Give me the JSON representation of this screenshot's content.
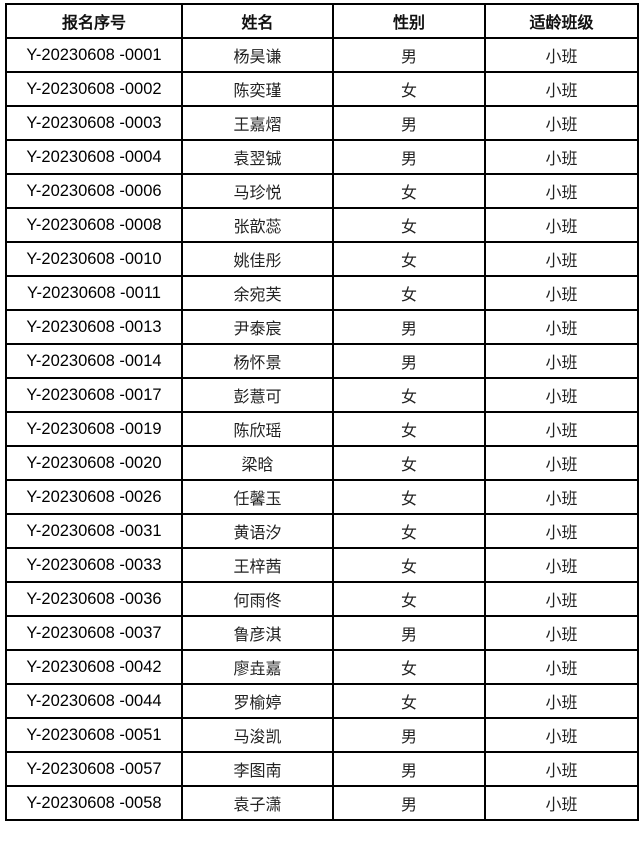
{
  "headers": [
    "报名序号",
    "姓名",
    "性别",
    "适龄班级"
  ],
  "rows": [
    [
      "Y-20230608 -0001",
      "杨昊谦",
      "男",
      "小班"
    ],
    [
      "Y-20230608 -0002",
      "陈奕瑾",
      "女",
      "小班"
    ],
    [
      "Y-20230608 -0003",
      "王嘉熠",
      "男",
      "小班"
    ],
    [
      "Y-20230608 -0004",
      "袁翌铖",
      "男",
      "小班"
    ],
    [
      "Y-20230608 -0006",
      "马珍悦",
      "女",
      "小班"
    ],
    [
      "Y-20230608 -0008",
      "张歆蕊",
      "女",
      "小班"
    ],
    [
      "Y-20230608 -0010",
      "姚佳彤",
      "女",
      "小班"
    ],
    [
      "Y-20230608 -0011",
      "余宛芙",
      "女",
      "小班"
    ],
    [
      "Y-20230608 -0013",
      "尹泰宸",
      "男",
      "小班"
    ],
    [
      "Y-20230608 -0014",
      "杨怀景",
      "男",
      "小班"
    ],
    [
      "Y-20230608 -0017",
      "彭薏可",
      "女",
      "小班"
    ],
    [
      "Y-20230608 -0019",
      "陈欣瑶",
      "女",
      "小班"
    ],
    [
      "Y-20230608 -0020",
      "梁晗",
      "女",
      "小班"
    ],
    [
      "Y-20230608 -0026",
      "任馨玉",
      "女",
      "小班"
    ],
    [
      "Y-20230608 -0031",
      "黄语汐",
      "女",
      "小班"
    ],
    [
      "Y-20230608 -0033",
      "王梓茜",
      "女",
      "小班"
    ],
    [
      "Y-20230608 -0036",
      "何雨佟",
      "女",
      "小班"
    ],
    [
      "Y-20230608 -0037",
      "鲁彦淇",
      "男",
      "小班"
    ],
    [
      "Y-20230608 -0042",
      "廖垚嘉",
      "女",
      "小班"
    ],
    [
      "Y-20230608 -0044",
      "罗榆婷",
      "女",
      "小班"
    ],
    [
      "Y-20230608 -0051",
      "马浚凯",
      "男",
      "小班"
    ],
    [
      "Y-20230608 -0057",
      "李图南",
      "男",
      "小班"
    ],
    [
      "Y-20230608 -0058",
      "袁子潇",
      "男",
      "小班"
    ]
  ]
}
